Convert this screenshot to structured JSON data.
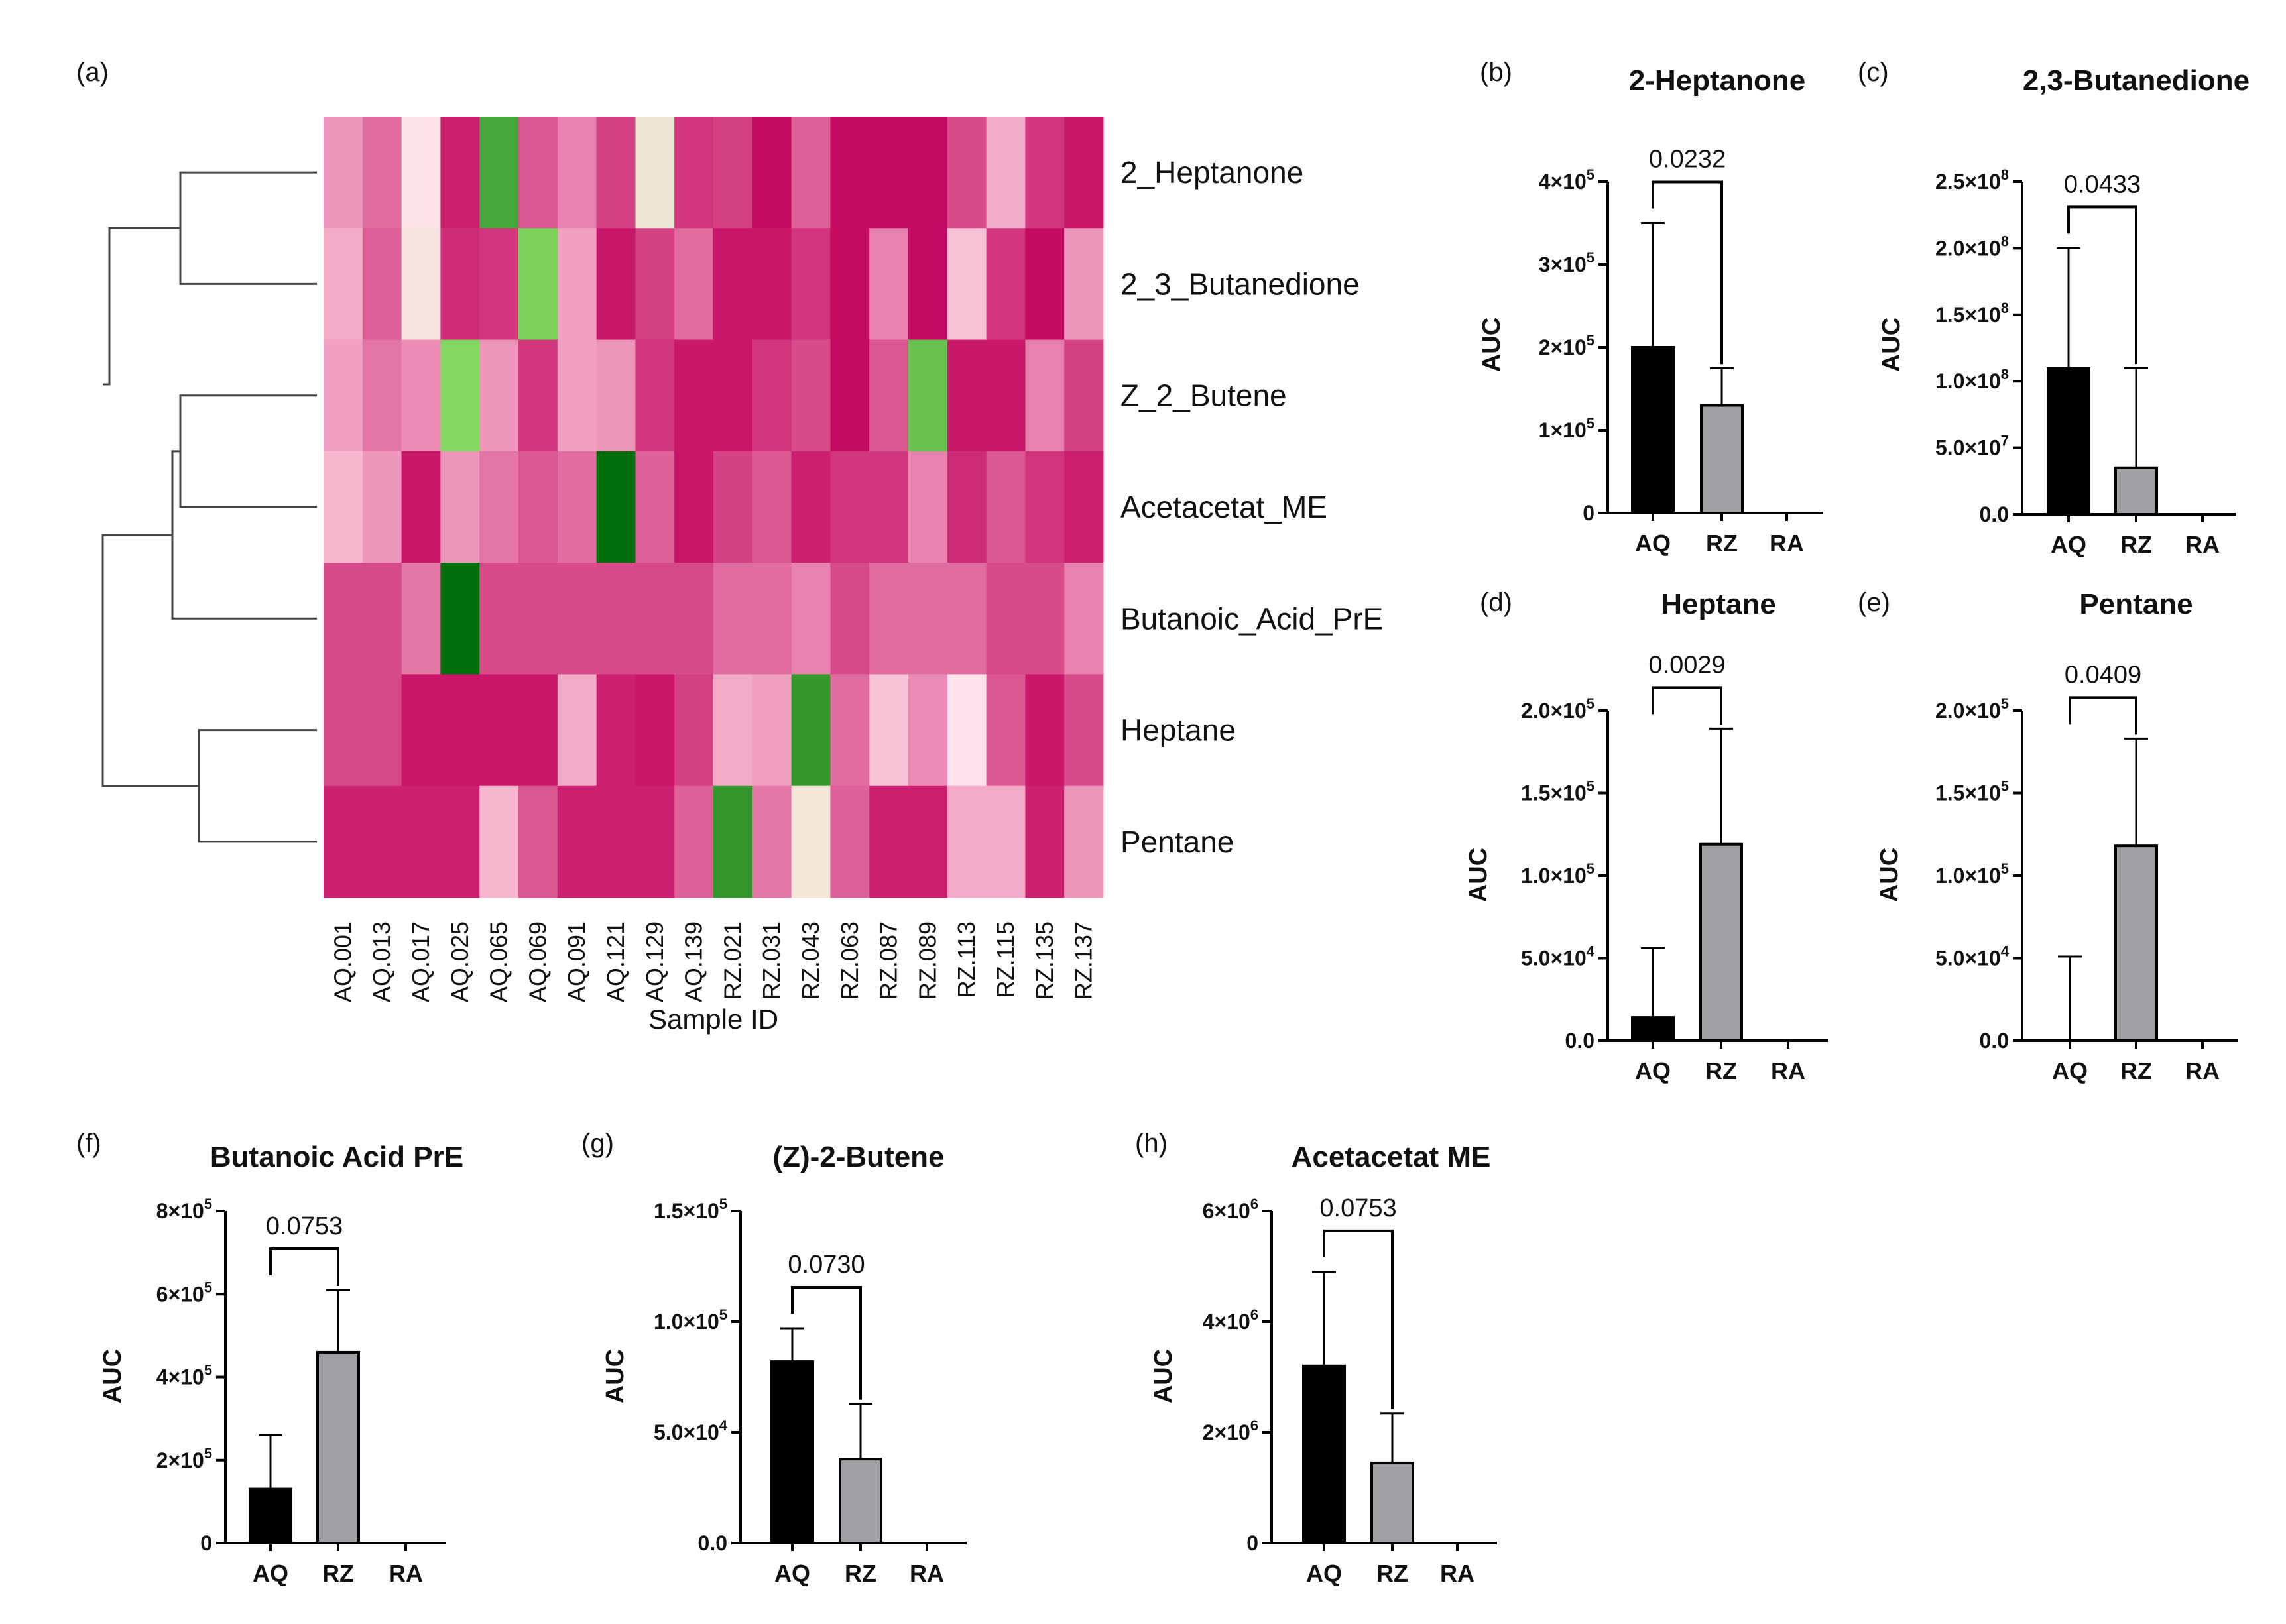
{
  "chart_data": [
    {
      "panel": "(a)",
      "type": "heatmap",
      "xlabel": "Sample ID",
      "columns": [
        "AQ.001",
        "AQ.013",
        "AQ.017",
        "AQ.025",
        "AQ.065",
        "AQ.069",
        "AQ.091",
        "AQ.121",
        "AQ.129",
        "AQ.139",
        "RZ.021",
        "RZ.031",
        "RZ.043",
        "RZ.063",
        "RZ.087",
        "RZ.089",
        "RZ.113",
        "RZ.115",
        "RZ.135",
        "RZ.137"
      ],
      "rows": [
        "2_Heptanone",
        "2_3_Butanedione",
        "Z_2_Butene",
        "Acetacetat_ME",
        "Butanoic_Acid_PrE",
        "Heptane",
        "Pentane"
      ],
      "colormap": {
        "low": "#006e0a",
        "mid": "#f3e8d8",
        "high": "#c2005a"
      },
      "values": [
        [
          -0.3,
          -0.5,
          0.1,
          -0.85,
          -2.2,
          -0.6,
          -0.4,
          -0.7,
          0.35,
          -0.75,
          -0.7,
          -0.95,
          -0.55,
          -0.95,
          -0.95,
          -0.95,
          -0.65,
          -0.2,
          -0.75,
          -0.9
        ],
        [
          -0.2,
          -0.55,
          0.15,
          -0.8,
          -0.75,
          -1.6,
          -0.25,
          -0.9,
          -0.7,
          -0.5,
          -0.9,
          -0.9,
          -0.75,
          -0.95,
          -0.4,
          -0.95,
          -0.1,
          -0.75,
          -0.95,
          -0.3
        ],
        [
          -0.25,
          -0.45,
          -0.35,
          -1.5,
          -0.3,
          -0.75,
          -0.25,
          -0.3,
          -0.75,
          -0.9,
          -0.9,
          -0.75,
          -0.65,
          -0.95,
          -0.6,
          -1.8,
          -0.9,
          -0.9,
          -0.4,
          -0.7
        ],
        [
          -0.15,
          -0.3,
          -0.9,
          -0.3,
          -0.45,
          -0.6,
          -0.5,
          -3,
          -0.55,
          -0.9,
          -0.7,
          -0.6,
          -0.85,
          -0.75,
          -0.75,
          -0.4,
          -0.8,
          -0.6,
          -0.75,
          -0.85
        ],
        [
          -0.65,
          -0.65,
          -0.45,
          -3,
          -0.65,
          -0.65,
          -0.65,
          -0.65,
          -0.65,
          -0.65,
          -0.5,
          -0.5,
          -0.4,
          -0.65,
          -0.5,
          -0.5,
          -0.5,
          -0.65,
          -0.65,
          -0.4
        ],
        [
          -0.65,
          -0.65,
          -0.9,
          -0.9,
          -0.9,
          -0.9,
          -0.2,
          -0.85,
          -0.9,
          -0.7,
          -0.2,
          -0.25,
          -2.4,
          -0.5,
          -0.1,
          -0.35,
          0.05,
          -0.6,
          -0.9,
          -0.65
        ],
        [
          -0.85,
          -0.85,
          -0.85,
          -0.85,
          -0.15,
          -0.6,
          -0.85,
          -0.85,
          -0.85,
          -0.55,
          -2.4,
          -0.45,
          0.7,
          -0.55,
          -0.85,
          -0.85,
          -0.2,
          -0.2,
          -0.85,
          -0.3
        ]
      ]
    },
    {
      "panel": "(b)",
      "type": "bar",
      "title": "2-Heptanone",
      "ylabel": "AUC",
      "categories": [
        "AQ",
        "RZ",
        "RA"
      ],
      "values": [
        200000,
        130000,
        0
      ],
      "errors": [
        150000,
        45000,
        0
      ],
      "ylim": [
        0,
        400000
      ],
      "yticks": [
        {
          "v": 0,
          "base": "0",
          "exp": ""
        },
        {
          "v": 100000,
          "base": "1×10",
          "exp": "5"
        },
        {
          "v": 200000,
          "base": "2×10",
          "exp": "5"
        },
        {
          "v": 300000,
          "base": "3×10",
          "exp": "5"
        },
        {
          "v": 400000,
          "base": "4×10",
          "exp": "5"
        }
      ],
      "pvalue": "0.0232"
    },
    {
      "panel": "(c)",
      "type": "bar",
      "title": "2,3-Butanedione",
      "ylabel": "AUC",
      "categories": [
        "AQ",
        "RZ",
        "RA"
      ],
      "values": [
        110000000,
        35000000,
        0
      ],
      "errors": [
        90000000,
        75000000,
        0
      ],
      "ylim": [
        0,
        250000000
      ],
      "yticks": [
        {
          "v": 0,
          "base": "0.0",
          "exp": ""
        },
        {
          "v": 50000000,
          "base": "5.0×10",
          "exp": "7"
        },
        {
          "v": 100000000,
          "base": "1.0×10",
          "exp": "8"
        },
        {
          "v": 150000000,
          "base": "1.5×10",
          "exp": "8"
        },
        {
          "v": 200000000,
          "base": "2.0×10",
          "exp": "8"
        },
        {
          "v": 250000000,
          "base": "2.5×10",
          "exp": "8"
        }
      ],
      "pvalue": "0.0433"
    },
    {
      "panel": "(d)",
      "type": "bar",
      "title": "Heptane",
      "ylabel": "AUC",
      "categories": [
        "AQ",
        "RZ",
        "RA"
      ],
      "values": [
        14000,
        119000,
        0
      ],
      "errors": [
        42000,
        70000,
        0
      ],
      "ylim": [
        0,
        200000
      ],
      "yticks": [
        {
          "v": 0,
          "base": "0.0",
          "exp": ""
        },
        {
          "v": 50000,
          "base": "5.0×10",
          "exp": "4"
        },
        {
          "v": 100000,
          "base": "1.0×10",
          "exp": "5"
        },
        {
          "v": 150000,
          "base": "1.5×10",
          "exp": "5"
        },
        {
          "v": 200000,
          "base": "2.0×10",
          "exp": "5"
        }
      ],
      "pvalue": "0.0029"
    },
    {
      "panel": "(e)",
      "type": "bar",
      "title": "Pentane",
      "ylabel": "AUC",
      "categories": [
        "AQ",
        "RZ",
        "RA"
      ],
      "values": [
        0,
        118000,
        0
      ],
      "errors": [
        51000,
        65000,
        0
      ],
      "ylim": [
        0,
        200000
      ],
      "yticks": [
        {
          "v": 0,
          "base": "0.0",
          "exp": ""
        },
        {
          "v": 50000,
          "base": "5.0×10",
          "exp": "4"
        },
        {
          "v": 100000,
          "base": "1.0×10",
          "exp": "5"
        },
        {
          "v": 150000,
          "base": "1.5×10",
          "exp": "5"
        },
        {
          "v": 200000,
          "base": "2.0×10",
          "exp": "5"
        }
      ],
      "pvalue": "0.0409"
    },
    {
      "panel": "(f)",
      "type": "bar",
      "title": "Butanoic Acid PrE",
      "ylabel": "AUC",
      "categories": [
        "AQ",
        "RZ",
        "RA"
      ],
      "values": [
        130000,
        460000,
        0
      ],
      "errors": [
        130000,
        150000,
        0
      ],
      "ylim": [
        0,
        800000
      ],
      "yticks": [
        {
          "v": 0,
          "base": "0",
          "exp": ""
        },
        {
          "v": 200000,
          "base": "2×10",
          "exp": "5"
        },
        {
          "v": 400000,
          "base": "4×10",
          "exp": "5"
        },
        {
          "v": 600000,
          "base": "6×10",
          "exp": "5"
        },
        {
          "v": 800000,
          "base": "8×10",
          "exp": "5"
        }
      ],
      "pvalue": "0.0753"
    },
    {
      "panel": "(g)",
      "type": "bar",
      "title": "(Z)-2-Butene",
      "ylabel": "AUC",
      "categories": [
        "AQ",
        "RZ",
        "RA"
      ],
      "values": [
        82000,
        38000,
        0
      ],
      "errors": [
        15000,
        25000,
        0
      ],
      "ylim": [
        0,
        150000
      ],
      "yticks": [
        {
          "v": 0,
          "base": "0.0",
          "exp": ""
        },
        {
          "v": 50000,
          "base": "5.0×10",
          "exp": "4"
        },
        {
          "v": 100000,
          "base": "1.0×10",
          "exp": "5"
        },
        {
          "v": 150000,
          "base": "1.5×10",
          "exp": "5"
        }
      ],
      "pvalue": "0.0730"
    },
    {
      "panel": "(h)",
      "type": "bar",
      "title": "Acetacetat ME",
      "ylabel": "AUC",
      "categories": [
        "AQ",
        "RZ",
        "RA"
      ],
      "values": [
        3200000,
        1450000,
        0
      ],
      "errors": [
        1700000,
        900000,
        0
      ],
      "ylim": [
        0,
        6000000
      ],
      "yticks": [
        {
          "v": 0,
          "base": "0",
          "exp": ""
        },
        {
          "v": 2000000,
          "base": "2×10",
          "exp": "6"
        },
        {
          "v": 4000000,
          "base": "4×10",
          "exp": "6"
        },
        {
          "v": 6000000,
          "base": "6×10",
          "exp": "6"
        }
      ],
      "pvalue": "0.0753"
    }
  ],
  "bar_colors": {
    "AQ": "#000000",
    "RZ": "#a0a0a4",
    "RA": "#ffffff"
  }
}
